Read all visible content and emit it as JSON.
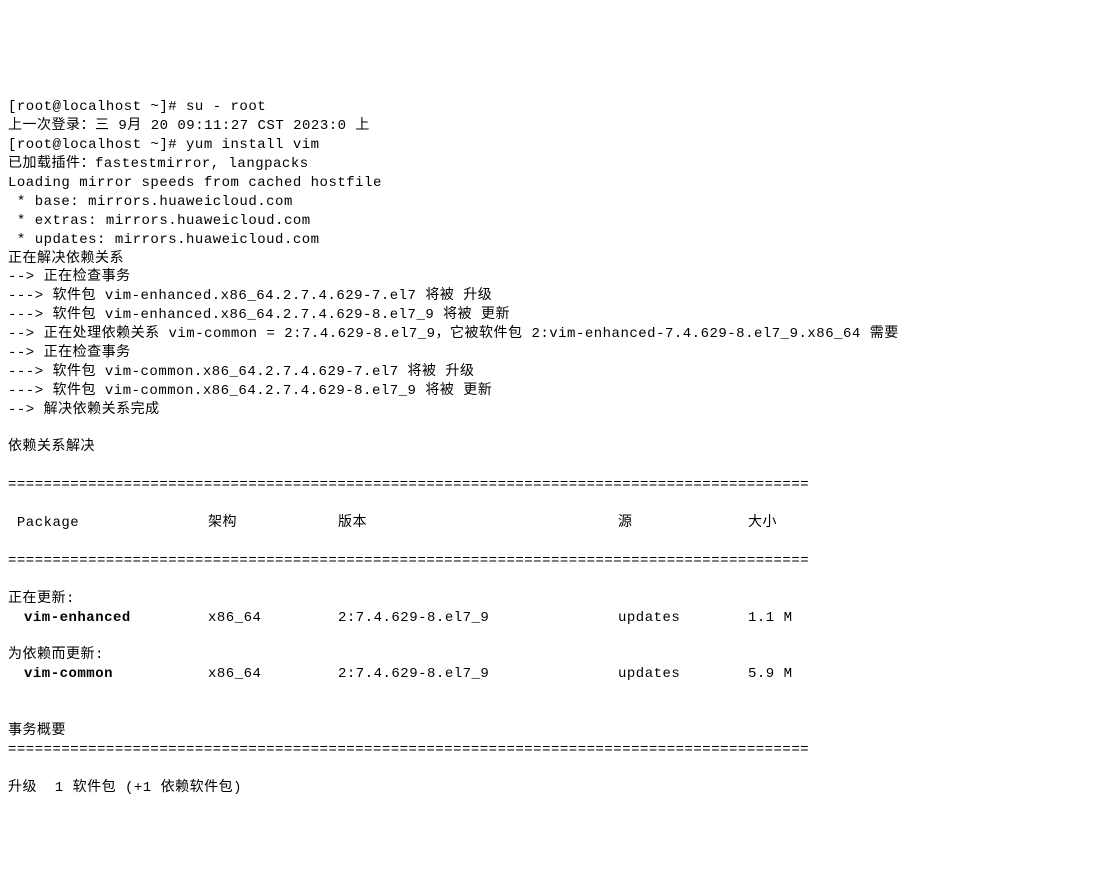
{
  "prompt1": "[root@localhost ~]# su - root",
  "last_login": "上一次登录：三 9月 20 09:11:27 CST 2023:0 上",
  "prompt2": "[root@localhost ~]# yum install vim",
  "plugins": "已加载插件：fastestmirror, langpacks",
  "loading_mirrors": "Loading mirror speeds from cached hostfile",
  "mirror_base": " * base: mirrors.huaweicloud.com",
  "mirror_extras": " * extras: mirrors.huaweicloud.com",
  "mirror_updates": " * updates: mirrors.huaweicloud.com",
  "resolving": "正在解决依赖关系",
  "check_trans1": "--> 正在检查事务",
  "pkg_line1": "---> 软件包 vim-enhanced.x86_64.2.7.4.629-7.el7 将被 升级",
  "pkg_line2": "---> 软件包 vim-enhanced.x86_64.2.7.4.629-8.el7_9 将被 更新",
  "dep_line": "--> 正在处理依赖关系 vim-common = 2:7.4.629-8.el7_9，它被软件包 2:vim-enhanced-7.4.629-8.el7_9.x86_64 需要",
  "check_trans2": "--> 正在检查事务",
  "pkg_line3": "---> 软件包 vim-common.x86_64.2.7.4.629-7.el7 将被 升级",
  "pkg_line4": "---> 软件包 vim-common.x86_64.2.7.4.629-8.el7_9 将被 更新",
  "resolve_done": "--> 解决依赖关系完成",
  "deps_resolved": "依赖关系解决",
  "divider": "==============================================================================================",
  "hdr_package": " Package",
  "hdr_arch": "架构",
  "hdr_version": "版本",
  "hdr_repo": "源",
  "hdr_size": "大小",
  "updating_label": "正在更新:",
  "row1_pkg": "vim-enhanced",
  "row1_arch": "x86_64",
  "row1_ver": "2:7.4.629-8.el7_9",
  "row1_repo": "updates",
  "row1_size": "1.1 M",
  "for_dep_label": "为依赖而更新:",
  "row2_pkg": "vim-common",
  "row2_arch": "x86_64",
  "row2_ver": "2:7.4.629-8.el7_9",
  "row2_repo": "updates",
  "row2_size": "5.9 M",
  "trans_summary": "事务概要",
  "upgrade_summary": "升级  1 软件包 (+1 依赖软件包)"
}
